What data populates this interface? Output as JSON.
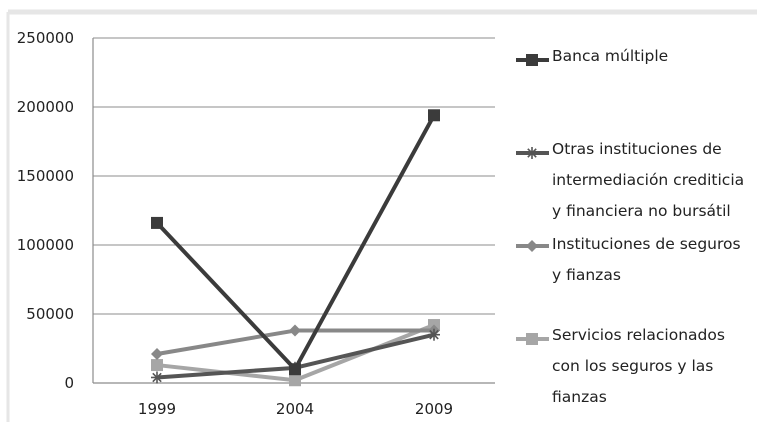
{
  "chart_data": {
    "type": "line",
    "categories": [
      "1999",
      "2004",
      "2009"
    ],
    "ylim": [
      0,
      250000
    ],
    "yticks": [
      0,
      50000,
      100000,
      150000,
      200000,
      250000
    ],
    "grid": "horizontal",
    "legend_position": "right",
    "series": [
      {
        "name": "Banca múltiple",
        "values": [
          116000,
          10000,
          194000
        ],
        "color": "#3b3b3b",
        "marker": "square"
      },
      {
        "name": "Otras instituciones de intermediación crediticia y financiera no bursátil",
        "values": [
          4000,
          11000,
          35000
        ],
        "color": "#555555",
        "marker": "asterisk"
      },
      {
        "name": "Instituciones de seguros y fianzas",
        "values": [
          21000,
          38000,
          38000
        ],
        "color": "#888888",
        "marker": "diamond"
      },
      {
        "name": "Servicios relacionados con los seguros y las fianzas",
        "values": [
          13000,
          2000,
          42000
        ],
        "color": "#a6a6a6",
        "marker": "square"
      }
    ]
  }
}
